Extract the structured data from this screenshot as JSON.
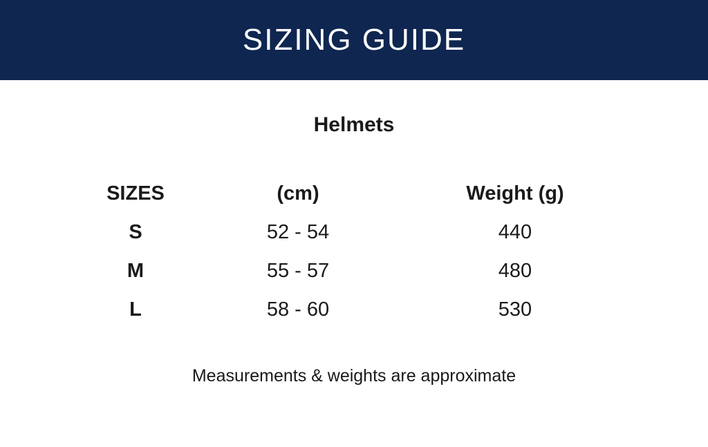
{
  "header": {
    "title": "SIZING GUIDE",
    "background": "#0f2650"
  },
  "subtitle": "Helmets",
  "table": {
    "headers": [
      "SIZES",
      "(cm)",
      "Weight (g)"
    ],
    "rows": [
      [
        "S",
        "52 - 54",
        "440"
      ],
      [
        "M",
        "55 - 57",
        "480"
      ],
      [
        "L",
        "58 - 60",
        "530"
      ]
    ]
  },
  "note": "Measurements & weights are approximate"
}
